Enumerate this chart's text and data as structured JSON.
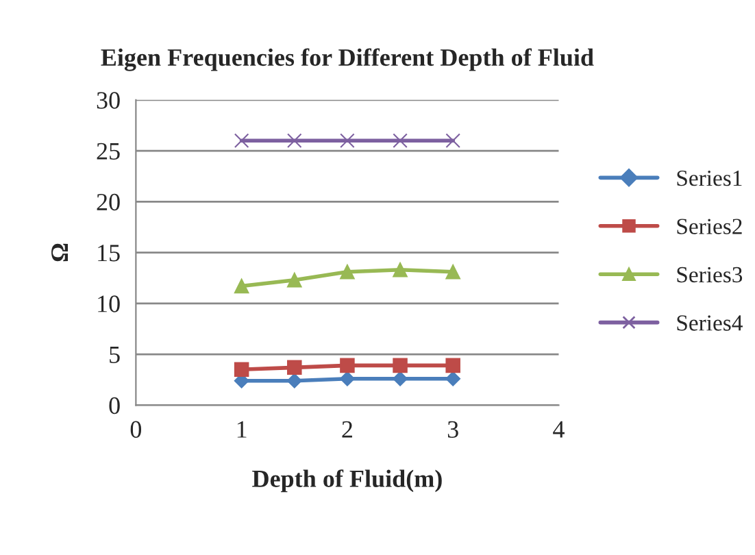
{
  "chart_data": {
    "type": "line",
    "title": "Eigen Frequencies for Different Depth of Fluid",
    "xlabel": "Depth of Fluid(m)",
    "ylabel": "Ω",
    "x": [
      1,
      1.5,
      2,
      2.5,
      3
    ],
    "series": [
      {
        "name": "Series1",
        "color": "#4a7ebb",
        "marker": "diamond",
        "values": [
          2.4,
          2.4,
          2.6,
          2.6,
          2.6
        ]
      },
      {
        "name": "Series2",
        "color": "#be4b48",
        "marker": "square",
        "values": [
          3.5,
          3.7,
          3.9,
          3.9,
          3.9
        ]
      },
      {
        "name": "Series3",
        "color": "#98b954",
        "marker": "triangle",
        "values": [
          11.7,
          12.3,
          13.1,
          13.3,
          13.1
        ]
      },
      {
        "name": "Series4",
        "color": "#7d60a0",
        "marker": "cross",
        "values": [
          26,
          26,
          26,
          26,
          26
        ]
      }
    ],
    "xlim": [
      0,
      4
    ],
    "xticks": [
      0,
      1,
      2,
      3,
      4
    ],
    "ylim": [
      0,
      30
    ],
    "yticks": [
      0,
      5,
      10,
      15,
      20,
      25,
      30
    ],
    "grid": "y",
    "legend": "right",
    "line_style": "solid"
  }
}
